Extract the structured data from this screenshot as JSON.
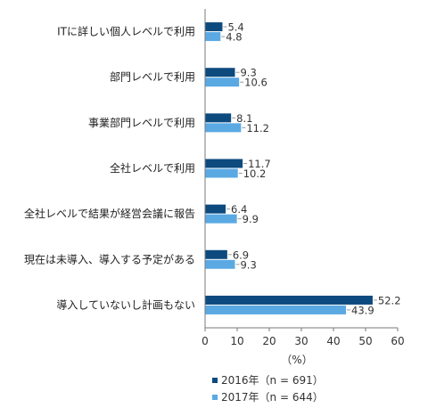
{
  "chart_data": {
    "type": "bar",
    "orientation": "horizontal",
    "categories": [
      "ITに詳しい個人レベルで利用",
      "部門レベルで利用",
      "事業部門レベルで利用",
      "全社レベルで利用",
      "全社レベルで結果が経営会議に報告",
      "現在は未導入、導入する予定がある",
      "導入していないし計画もない"
    ],
    "series": [
      {
        "name": "2016年（n = 691）",
        "color": "#0d4a7e",
        "values": [
          5.4,
          9.3,
          8.1,
          11.7,
          6.4,
          6.9,
          52.2
        ]
      },
      {
        "name": "2017年（n = 644）",
        "color": "#5ba9e3",
        "values": [
          4.8,
          10.6,
          11.2,
          10.2,
          9.9,
          9.3,
          43.9
        ]
      }
    ],
    "value_labels": [
      [
        "5.4",
        "9.3",
        "8.1",
        "11.7",
        "6.4",
        "6.9",
        "52.2"
      ],
      [
        "4.8",
        "10.6",
        "11.2",
        "10.2",
        "9.9",
        "9.3",
        "43.9"
      ]
    ],
    "xlim": [
      0,
      60
    ],
    "xticks": [
      0,
      10,
      20,
      30,
      40,
      50,
      60
    ],
    "xlabel": "（%）",
    "grid": false,
    "legend_position": "bottom"
  }
}
